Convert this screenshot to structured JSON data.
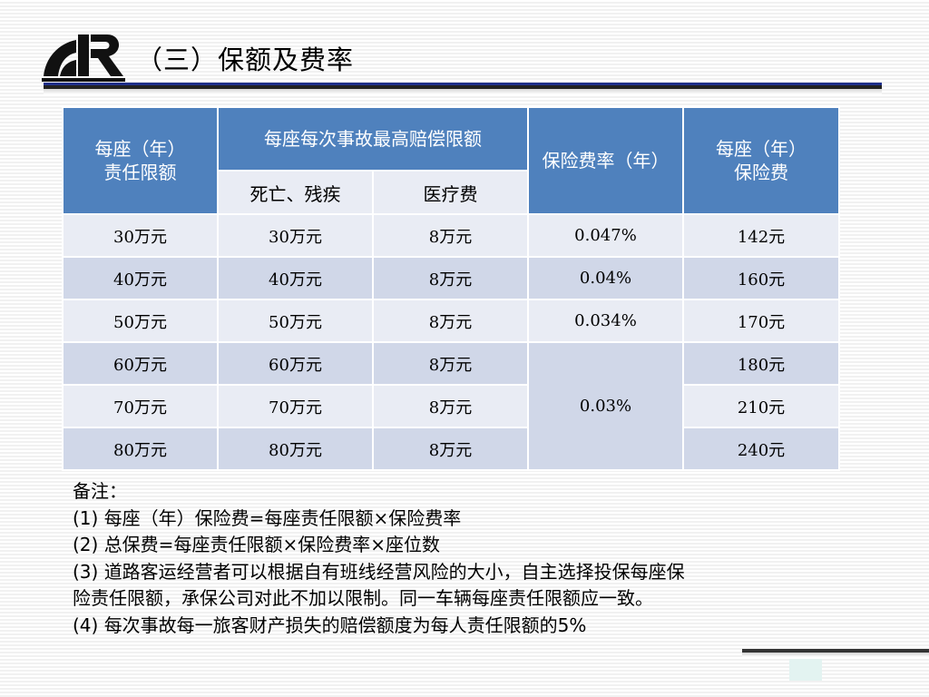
{
  "slide": {
    "title": "（三）保额及费率"
  },
  "table": {
    "headers": {
      "per_seat_limit": "每座（年）\n责任限额",
      "per_accident_max": "每座每次事故最高赔偿限额",
      "death_disability": "死亡、残疾",
      "medical": "医疗费",
      "rate": "保险费率（年）",
      "premium": "每座（年）\n保险费"
    },
    "rows": [
      {
        "limit": "30万元",
        "death": "30万元",
        "medical": "8万元",
        "rate": "0.047%",
        "premium": "142元"
      },
      {
        "limit": "40万元",
        "death": "40万元",
        "medical": "8万元",
        "rate": "0.04%",
        "premium": "160元"
      },
      {
        "limit": "50万元",
        "death": "50万元",
        "medical": "8万元",
        "rate": "0.034%",
        "premium": "170元"
      },
      {
        "limit": "60万元",
        "death": "60万元",
        "medical": "8万元",
        "rate": "0.03%",
        "premium": "180元"
      },
      {
        "limit": "70万元",
        "death": "70万元",
        "medical": "8万元",
        "premium": "210元"
      },
      {
        "limit": "80万元",
        "death": "80万元",
        "medical": "8万元",
        "premium": "240元"
      }
    ]
  },
  "notes": {
    "heading": "备注：",
    "lines": [
      "(1) 每座（年）保险费=每座责任限额×保险费率",
      "(2) 总保费=每座责任限额×保险费率×座位数",
      "(3) 道路客运经营者可以根据自有班线经营风险的大小，自主选择投保每座保",
      "险责任限额，承保公司对此不加以限制。同一车辆每座责任限额应一致。",
      "(4) 每次事故每一旅客财产损失的赔偿额度为每人责任限额的5%"
    ]
  },
  "colors": {
    "header_blue": "#4f81bd",
    "row_light": "#e9ecf4",
    "row_dark": "#d0d7e8",
    "rule_blue": "#1f2f8a"
  }
}
